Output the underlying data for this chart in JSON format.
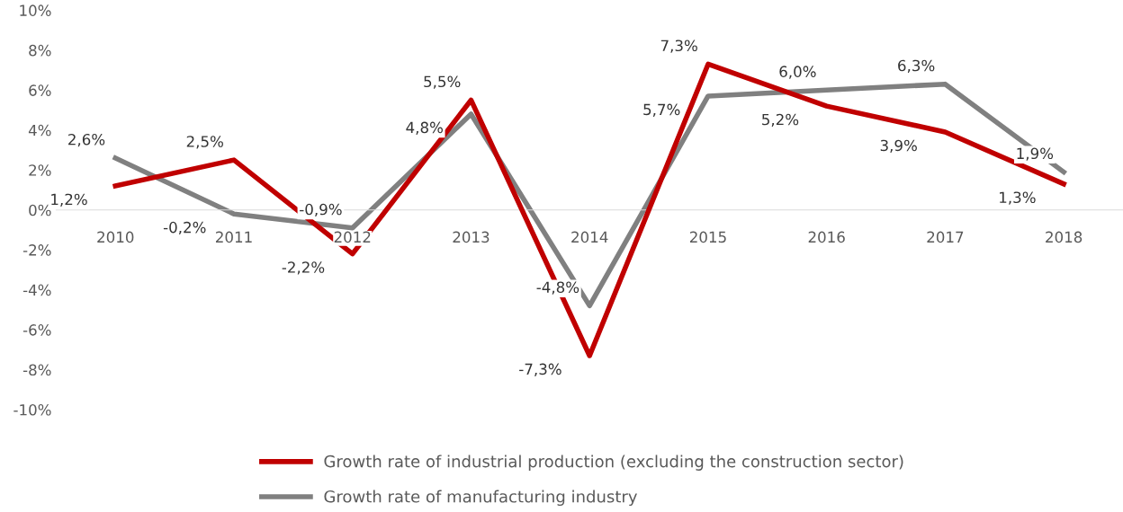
{
  "chart_data": {
    "type": "line",
    "categories": [
      "2010",
      "2011",
      "2012",
      "2013",
      "2014",
      "2015",
      "2016",
      "2017",
      "2018"
    ],
    "series": [
      {
        "name": "Growth rate of industrial production (excluding the construction sector)",
        "color": "#c00000",
        "values": [
          1.2,
          2.5,
          -2.2,
          5.5,
          -7.3,
          7.3,
          5.2,
          3.9,
          1.3
        ],
        "value_labels": [
          "1,2%",
          "2,5%",
          "-2,2%",
          "5,5%",
          "-7,3%",
          "7,3%",
          "5,2%",
          "3,9%",
          "1,3%"
        ]
      },
      {
        "name": "Growth rate of manufacturing industry",
        "color": "#808080",
        "values": [
          2.6,
          -0.2,
          -0.9,
          4.8,
          -4.8,
          5.7,
          6.0,
          6.3,
          1.9
        ],
        "value_labels": [
          "2,6%",
          "-0,2%",
          "-0,9%",
          "4,8%",
          "-4,8%",
          "5,7%",
          "6,0%",
          "6,3%",
          "1,9%"
        ]
      }
    ],
    "ylim": [
      -10,
      10
    ],
    "yticks": [
      {
        "value": -10,
        "label": "-10%"
      },
      {
        "value": -8,
        "label": "-8%"
      },
      {
        "value": -6,
        "label": "-6%"
      },
      {
        "value": -4,
        "label": "-4%"
      },
      {
        "value": -2,
        "label": "-2%"
      },
      {
        "value": 0,
        "label": "0%"
      },
      {
        "value": 2,
        "label": "2%"
      },
      {
        "value": 4,
        "label": "4%"
      },
      {
        "value": 6,
        "label": "6%"
      },
      {
        "value": 8,
        "label": "8%"
      },
      {
        "value": 10,
        "label": "10%"
      }
    ],
    "grid": false,
    "legend": "bottom",
    "marker": "none",
    "line_style": "solid"
  }
}
